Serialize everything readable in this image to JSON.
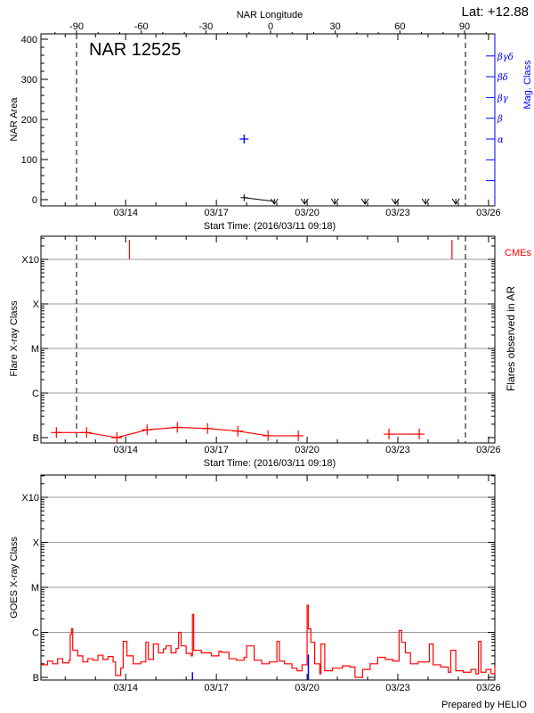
{
  "header": {
    "lat_label": "Lat: +12.88",
    "region_title": "NAR 12525",
    "prepared_by": "Prepared by HELIO"
  },
  "colors": {
    "flare": "#ff0000",
    "mag_class": "#0000ff",
    "area": "#000000",
    "grid": "#999999"
  },
  "chart_data": [
    {
      "type": "scatter",
      "xlabel": "Start Time: (2016/03/11 09:18)",
      "ylabel": "NAR Area",
      "y2label": "Mag. Class",
      "top_xlabel": "NAR Longitude",
      "xlim": [
        "03/11 04:45",
        "03/26 05:00"
      ],
      "ylim": [
        0,
        400
      ],
      "x_ticks": [
        "03/14",
        "03/17",
        "03/20",
        "03/23",
        "03/26"
      ],
      "y_ticks": [
        "0",
        "100",
        "200",
        "300",
        "400"
      ],
      "top_ticks": [
        "-90",
        "-60",
        "-30",
        "0",
        "30",
        "60",
        "90"
      ],
      "mag_ticks": [
        "α",
        "β",
        "βγ",
        "βδ",
        "βγδ"
      ],
      "limb_crossings": [
        "03/12 09:00",
        "03/25 05:40"
      ],
      "area_series": [
        {
          "time": "03/17 22:00",
          "area": 5
        },
        {
          "time": "03/18 22:00",
          "area": 0
        },
        {
          "time": "03/19 22:00",
          "area": 0
        },
        {
          "time": "03/20 22:00",
          "area": 0
        },
        {
          "time": "03/21 22:00",
          "area": 0
        },
        {
          "time": "03/22 22:00",
          "area": 0
        },
        {
          "time": "03/23 22:00",
          "area": 0
        },
        {
          "time": "03/24 22:00",
          "area": 0
        }
      ],
      "mag_series": [
        {
          "time": "03/17 22:00",
          "class": "α"
        }
      ]
    },
    {
      "type": "scatter",
      "xlabel": "Start Time: (2016/03/11 09:18)",
      "ylabel": "Flare X-ray Class",
      "y2label": "Flares observed in AR",
      "cme_label": "CMEs",
      "yscale": "log",
      "grid": true,
      "x_ticks": [
        "03/14",
        "03/17",
        "03/20",
        "03/23",
        "03/26"
      ],
      "y_ticks": [
        "B",
        "C",
        "M",
        "X",
        "X10"
      ],
      "limb_crossings": [
        "03/12 09:00",
        "03/25 05:40"
      ],
      "flare_segments": [
        [
          [
            "03/11 17:00",
            "B1.3"
          ],
          [
            "03/12 17:00",
            "B1.3"
          ],
          [
            "03/13 17:00",
            "B1.0"
          ],
          [
            "03/14 17:00",
            "B1.5"
          ],
          [
            "03/15 17:00",
            "B1.7"
          ],
          [
            "03/16 17:00",
            "B1.6"
          ],
          [
            "03/17 17:00",
            "B1.4"
          ],
          [
            "03/18 17:00",
            "B1.1"
          ],
          [
            "03/19 17:00",
            "B1.1"
          ]
        ],
        [
          [
            "03/22 17:00",
            "B1.2"
          ],
          [
            "03/23 17:00",
            "B1.2"
          ]
        ]
      ],
      "cmes": [
        "03/14 03:00",
        "03/24 19:00"
      ]
    },
    {
      "type": "line",
      "ylabel": "GOES X-ray Class",
      "yscale": "log",
      "grid": true,
      "x_ticks": [
        "03/14",
        "03/17",
        "03/20",
        "03/23",
        "03/26"
      ],
      "y_ticks": [
        "B",
        "C",
        "M",
        "X",
        "X10"
      ],
      "flux_series": [
        [
          "03/11 05:00",
          1.9e-07
        ],
        [
          "03/11 10:00",
          2.3e-07
        ],
        [
          "03/11 14:00",
          2e-07
        ],
        [
          "03/11 18:00",
          2.6e-07
        ],
        [
          "03/11 22:00",
          2.1e-07
        ],
        [
          "03/12 03:00",
          2.4e-07
        ],
        [
          "03/12 04:00",
          9e-07
        ],
        [
          "03/12 05:00",
          1.2e-06
        ],
        [
          "03/12 06:00",
          4e-07
        ],
        [
          "03/12 10:00",
          3e-07
        ],
        [
          "03/12 14:00",
          2.2e-07
        ],
        [
          "03/12 18:00",
          2.6e-07
        ],
        [
          "03/12 22:00",
          2.4e-07
        ],
        [
          "03/13 02:00",
          3.1e-07
        ],
        [
          "03/13 06:00",
          2.5e-07
        ],
        [
          "03/13 10:00",
          2.9e-07
        ],
        [
          "03/13 14:00",
          2.2e-07
        ],
        [
          "03/13 16:00",
          1.1e-07
        ],
        [
          "03/13 20:00",
          1.6e-07
        ],
        [
          "03/13 22:00",
          6.3e-07
        ],
        [
          "03/14 01:00",
          3e-07
        ],
        [
          "03/14 06:00",
          2e-07
        ],
        [
          "03/14 12:00",
          2.2e-07
        ],
        [
          "03/14 16:00",
          6e-07
        ],
        [
          "03/14 18:00",
          2.5e-07
        ],
        [
          "03/14 22:00",
          5.5e-07
        ],
        [
          "03/15 02:00",
          3.5e-07
        ],
        [
          "03/15 06:00",
          4.3e-07
        ],
        [
          "03/15 08:00",
          5e-07
        ],
        [
          "03/15 12:00",
          3.5e-07
        ],
        [
          "03/15 16:00",
          4.4e-07
        ],
        [
          "03/15 18:00",
          1e-06
        ],
        [
          "03/15 20:00",
          5e-07
        ],
        [
          "03/16 00:00",
          3.4e-07
        ],
        [
          "03/16 04:00",
          3e-07
        ],
        [
          "03/16 05:00",
          2.5e-06
        ],
        [
          "03/16 06:00",
          4e-07
        ],
        [
          "03/16 12:00",
          3.5e-07
        ],
        [
          "03/16 20:00",
          3e-07
        ],
        [
          "03/17 02:00",
          3.8e-07
        ],
        [
          "03/17 04:00",
          3.6e-07
        ],
        [
          "03/17 10:00",
          2.6e-07
        ],
        [
          "03/17 16:00",
          2.4e-07
        ],
        [
          "03/17 22:00",
          2.8e-07
        ],
        [
          "03/18 00:00",
          5e-07
        ],
        [
          "03/18 06:00",
          2.4e-07
        ],
        [
          "03/18 12:00",
          2e-07
        ],
        [
          "03/18 18:00",
          2.2e-07
        ],
        [
          "03/19 00:00",
          6.3e-07
        ],
        [
          "03/19 02:00",
          2.3e-07
        ],
        [
          "03/19 06:00",
          2e-07
        ],
        [
          "03/19 12:00",
          1.6e-07
        ],
        [
          "03/19 16:00",
          1.4e-07
        ],
        [
          "03/19 20:00",
          1.9e-07
        ],
        [
          "03/20 00:00",
          4e-06
        ],
        [
          "03/20 01:00",
          1.2e-06
        ],
        [
          "03/20 03:00",
          6e-07
        ],
        [
          "03/20 06:00",
          2e-07
        ],
        [
          "03/20 10:00",
          1.2e-07
        ],
        [
          "03/20 11:00",
          5.5e-07
        ],
        [
          "03/20 14:00",
          1.4e-07
        ],
        [
          "03/20 20:00",
          1.6e-07
        ],
        [
          "03/21 04:00",
          1.8e-07
        ],
        [
          "03/21 10:00",
          1.7e-07
        ],
        [
          "03/21 14:00",
          1e-07
        ],
        [
          "03/21 20:00",
          1.5e-07
        ],
        [
          "03/22 02:00",
          2e-07
        ],
        [
          "03/22 08:00",
          2.8e-07
        ],
        [
          "03/22 14:00",
          2.5e-07
        ],
        [
          "03/22 20:00",
          2.3e-07
        ],
        [
          "03/23 01:00",
          1.1e-06
        ],
        [
          "03/23 03:00",
          6e-07
        ],
        [
          "03/23 06:00",
          3.5e-07
        ],
        [
          "03/23 10:00",
          2e-07
        ],
        [
          "03/23 16:00",
          2.2e-07
        ],
        [
          "03/24 01:00",
          5.5e-07
        ],
        [
          "03/24 04:00",
          1.9e-07
        ],
        [
          "03/24 10:00",
          1.7e-07
        ],
        [
          "03/24 16:00",
          1.3e-07
        ],
        [
          "03/24 18:00",
          4e-07
        ],
        [
          "03/24 22:00",
          1.4e-07
        ],
        [
          "03/25 04:00",
          1.3e-07
        ],
        [
          "03/25 10:00",
          1.5e-07
        ],
        [
          "03/25 14:00",
          1.2e-07
        ],
        [
          "03/25 16:00",
          6.3e-07
        ],
        [
          "03/25 18:00",
          1.3e-07
        ],
        [
          "03/25 22:00",
          1.5e-07
        ],
        [
          "03/26 02:00",
          1.2e-07
        ],
        [
          "03/26 05:00",
          1.8e-07
        ]
      ],
      "event_markers": [
        [
          "03/16 05:00",
          1.3e-07
        ],
        [
          "03/20 01:00",
          3.2e-07
        ]
      ]
    }
  ]
}
